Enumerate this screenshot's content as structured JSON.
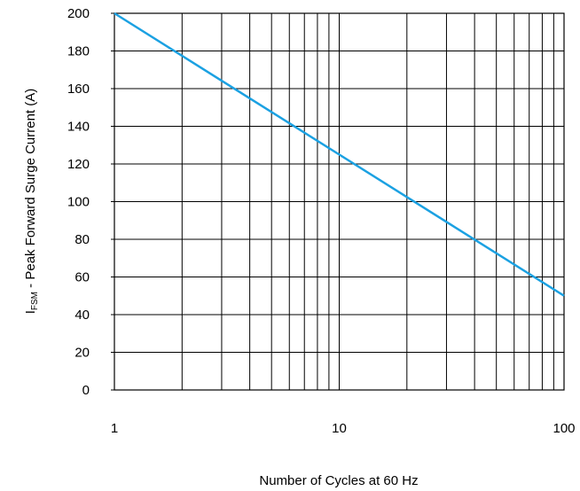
{
  "chart_data": {
    "type": "line",
    "title": "",
    "xlabel": "Number of Cycles at 60 Hz",
    "ylabel": {
      "prefix": "I",
      "subscript": "FSM",
      "suffix": " - Peak Forward Surge Current (A)"
    },
    "x_scale": "log",
    "xlim": [
      1,
      100
    ],
    "ylim": [
      0,
      200
    ],
    "x_tick_labels": [
      {
        "value": 1,
        "label": "1"
      },
      {
        "value": 10,
        "label": "10"
      },
      {
        "value": 100,
        "label": "100"
      }
    ],
    "y_tick_labels": [
      {
        "value": 0,
        "label": "0"
      },
      {
        "value": 20,
        "label": "20"
      },
      {
        "value": 40,
        "label": "40"
      },
      {
        "value": 60,
        "label": "60"
      },
      {
        "value": 80,
        "label": "80"
      },
      {
        "value": 100,
        "label": "100"
      },
      {
        "value": 120,
        "label": "120"
      },
      {
        "value": 140,
        "label": "140"
      },
      {
        "value": 160,
        "label": "160"
      },
      {
        "value": 180,
        "label": "180"
      },
      {
        "value": 200,
        "label": "200"
      }
    ],
    "grid": true,
    "series": [
      {
        "color": "#1ba1e2",
        "x": [
          1,
          100
        ],
        "y": [
          200,
          50
        ]
      }
    ]
  }
}
